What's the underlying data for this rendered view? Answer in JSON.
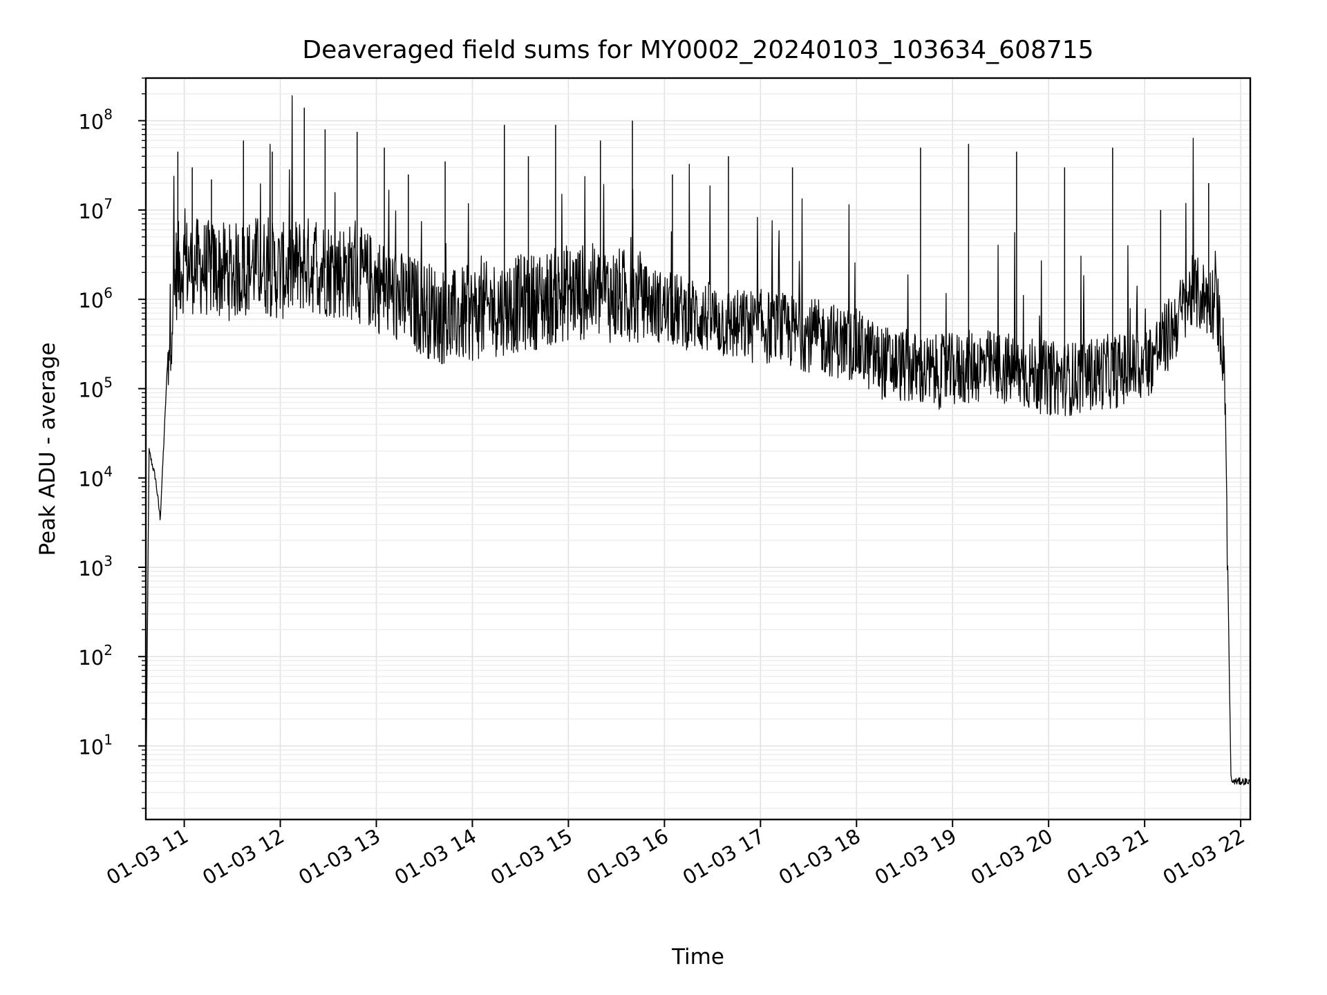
{
  "chart_data": {
    "type": "line",
    "title": "Deaveraged field sums for MY0002_20240103_103634_608715",
    "xlabel": "Time",
    "ylabel": "Peak ADU - average",
    "yscale": "log",
    "ylim": [
      1.5,
      300000000.0
    ],
    "xlim": [
      "01-03 10:36",
      "01-03 22:06"
    ],
    "grid": true,
    "legend": "none",
    "line_color": "#000000",
    "xticks": [
      "01-03 11",
      "01-03 12",
      "01-03 13",
      "01-03 14",
      "01-03 15",
      "01-03 16",
      "01-03 17",
      "01-03 18",
      "01-03 19",
      "01-03 20",
      "01-03 21",
      "01-03 22"
    ],
    "yticks": [
      {
        "base": "10",
        "exp": "1",
        "value": 10
      },
      {
        "base": "10",
        "exp": "2",
        "value": 100
      },
      {
        "base": "10",
        "exp": "3",
        "value": 1000
      },
      {
        "base": "10",
        "exp": "4",
        "value": 10000
      },
      {
        "base": "10",
        "exp": "5",
        "value": 100000
      },
      {
        "base": "10",
        "exp": "6",
        "value": 1000000
      },
      {
        "base": "10",
        "exp": "7",
        "value": 10000000
      },
      {
        "base": "10",
        "exp": "8",
        "value": 100000000
      }
    ],
    "series": [
      {
        "x": [
          "01-03 10:36",
          "01-03 10:38",
          "01-03 10:42",
          "01-03 10:45",
          "01-03 10:47",
          "01-03 10:50",
          "01-03 10:55",
          "01-03 11:00",
          "01-03 11:15",
          "01-03 11:30",
          "01-03 11:45",
          "01-03 12:00",
          "01-03 12:15",
          "01-03 12:30",
          "01-03 12:45",
          "01-03 13:00",
          "01-03 13:15",
          "01-03 13:30",
          "01-03 13:45",
          "01-03 14:00",
          "01-03 14:15",
          "01-03 14:30",
          "01-03 14:45",
          "01-03 15:00",
          "01-03 15:15",
          "01-03 15:30",
          "01-03 15:45",
          "01-03 16:00",
          "01-03 16:15",
          "01-03 16:30",
          "01-03 16:45",
          "01-03 17:00",
          "01-03 17:15",
          "01-03 17:30",
          "01-03 17:45",
          "01-03 18:00",
          "01-03 18:15",
          "01-03 18:30",
          "01-03 18:45",
          "01-03 19:00",
          "01-03 19:15",
          "01-03 19:30",
          "01-03 19:45",
          "01-03 20:00",
          "01-03 20:15",
          "01-03 20:30",
          "01-03 20:45",
          "01-03 21:00",
          "01-03 21:15",
          "01-03 21:30",
          "01-03 21:45",
          "01-03 21:50",
          "01-03 21:53",
          "01-03 21:54",
          "01-03 22:06"
        ],
        "y": [
          2,
          20000,
          10000,
          3500,
          20000,
          300000,
          2000000,
          2500000,
          2200000,
          2000000,
          2500000,
          2000000,
          2500000,
          2200000,
          2000000,
          1500000,
          1000000,
          800000,
          600000,
          700000,
          800000,
          900000,
          1000000,
          1200000,
          1200000,
          1100000,
          1000000,
          800000,
          700000,
          600000,
          500000,
          500000,
          450000,
          400000,
          350000,
          300000,
          200000,
          180000,
          150000,
          160000,
          180000,
          170000,
          150000,
          130000,
          130000,
          150000,
          160000,
          180000,
          400000,
          1200000,
          900000,
          200000,
          50,
          4,
          4
        ]
      }
    ],
    "spikes": [
      {
        "x": "01-03 10:56",
        "y": 45000000
      },
      {
        "x": "01-03 11:05",
        "y": 30000000
      },
      {
        "x": "01-03 11:17",
        "y": 22000000
      },
      {
        "x": "01-03 11:37",
        "y": 60000000
      },
      {
        "x": "01-03 11:55",
        "y": 45000000
      },
      {
        "x": "01-03 12:15",
        "y": 140000000
      },
      {
        "x": "01-03 12:28",
        "y": 80000000
      },
      {
        "x": "01-03 12:48",
        "y": 75000000
      },
      {
        "x": "01-03 13:05",
        "y": 50000000
      },
      {
        "x": "01-03 13:20",
        "y": 25000000
      },
      {
        "x": "01-03 13:43",
        "y": 35000000
      },
      {
        "x": "01-03 14:20",
        "y": 90000000
      },
      {
        "x": "01-03 14:35",
        "y": 40000000
      },
      {
        "x": "01-03 14:52",
        "y": 90000000
      },
      {
        "x": "01-03 15:20",
        "y": 60000000
      },
      {
        "x": "01-03 15:40",
        "y": 100000000
      },
      {
        "x": "01-03 16:05",
        "y": 25000000
      },
      {
        "x": "01-03 16:40",
        "y": 40000000
      },
      {
        "x": "01-03 17:20",
        "y": 30000000
      },
      {
        "x": "01-03 18:40",
        "y": 50000000
      },
      {
        "x": "01-03 19:10",
        "y": 55000000
      },
      {
        "x": "01-03 19:40",
        "y": 45000000
      },
      {
        "x": "01-03 20:10",
        "y": 30000000
      },
      {
        "x": "01-03 20:40",
        "y": 50000000
      },
      {
        "x": "01-03 21:10",
        "y": 10000000
      },
      {
        "x": "01-03 21:40",
        "y": 20000000
      }
    ]
  }
}
